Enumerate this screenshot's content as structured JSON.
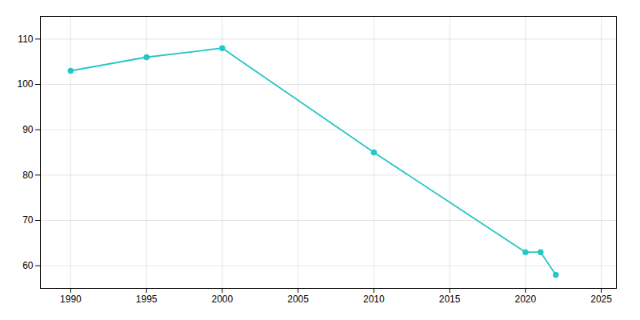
{
  "chart_data": {
    "type": "line",
    "x": [
      1990,
      1995,
      2000,
      2010,
      2020,
      2021,
      2022
    ],
    "values": [
      103,
      106,
      108,
      85,
      63,
      63,
      58
    ],
    "color": "#26c6c6",
    "marker": "circle",
    "xlim": [
      1988,
      2026
    ],
    "ylim": [
      55,
      115
    ],
    "xticks": [
      1990,
      1995,
      2000,
      2005,
      2010,
      2015,
      2020,
      2025
    ],
    "yticks": [
      60,
      70,
      80,
      90,
      100,
      110
    ],
    "grid": true
  }
}
